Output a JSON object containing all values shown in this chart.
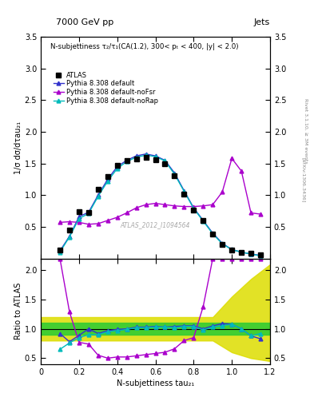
{
  "title_top": "7000 GeV pp",
  "title_right": "Jets",
  "right_label": "Rivet 3.1.10, ≥ 3M events",
  "watermark": "ATLAS_2012_I1094564",
  "arxiv": "[arXiv:1306.3436]",
  "inner_title": "N-subjettiness τ₂/τ₁(CA(1.2), 300< pₜ < 400, |y| < 2.0)",
  "ylabel_main": "1/σ dσ/dτau₂₁",
  "ylabel_ratio": "Ratio to ATLAS",
  "xlabel": "N-subjettiness tau₂₁",
  "ylim_main": [
    0,
    3.5
  ],
  "ylim_ratio": [
    0.4,
    2.2
  ],
  "yticks_main": [
    0.5,
    1.0,
    1.5,
    2.0,
    2.5,
    3.0,
    3.5
  ],
  "yticks_ratio": [
    0.5,
    1.0,
    1.5,
    2.0
  ],
  "xlim": [
    0,
    1.2
  ],
  "xticks": [
    0,
    0.2,
    0.4,
    0.6,
    0.8,
    1.0,
    1.2
  ],
  "atlas_x": [
    0.1,
    0.15,
    0.2,
    0.25,
    0.3,
    0.35,
    0.4,
    0.45,
    0.5,
    0.55,
    0.6,
    0.65,
    0.7,
    0.75,
    0.8,
    0.85,
    0.9,
    0.95,
    1.0,
    1.05,
    1.1,
    1.15
  ],
  "atlas_y": [
    0.13,
    0.45,
    0.74,
    0.73,
    1.09,
    1.29,
    1.47,
    1.55,
    1.57,
    1.6,
    1.56,
    1.5,
    1.3,
    1.02,
    0.76,
    0.6,
    0.38,
    0.22,
    0.13,
    0.1,
    0.08,
    0.06
  ],
  "pythia_default_x": [
    0.1,
    0.15,
    0.2,
    0.25,
    0.3,
    0.35,
    0.4,
    0.45,
    0.5,
    0.55,
    0.6,
    0.65,
    0.7,
    0.75,
    0.8,
    0.85,
    0.9,
    0.95,
    1.0,
    1.05,
    1.1,
    1.15
  ],
  "pythia_default_y": [
    0.12,
    0.35,
    0.66,
    0.73,
    1.0,
    1.25,
    1.45,
    1.55,
    1.62,
    1.65,
    1.62,
    1.55,
    1.35,
    1.07,
    0.8,
    0.6,
    0.4,
    0.24,
    0.14,
    0.1,
    0.07,
    0.05
  ],
  "pythia_noFsr_x": [
    0.1,
    0.15,
    0.2,
    0.25,
    0.3,
    0.35,
    0.4,
    0.45,
    0.5,
    0.55,
    0.6,
    0.65,
    0.7,
    0.75,
    0.8,
    0.85,
    0.9,
    0.95,
    1.0,
    1.05,
    1.1,
    1.15
  ],
  "pythia_noFsr_y": [
    0.57,
    0.58,
    0.57,
    0.54,
    0.55,
    0.6,
    0.65,
    0.72,
    0.8,
    0.85,
    0.87,
    0.85,
    0.83,
    0.82,
    0.82,
    0.83,
    0.85,
    1.05,
    1.58,
    1.38,
    0.72,
    0.7
  ],
  "pythia_noRap_x": [
    0.1,
    0.15,
    0.2,
    0.25,
    0.3,
    0.35,
    0.4,
    0.45,
    0.5,
    0.55,
    0.6,
    0.65,
    0.7,
    0.75,
    0.8,
    0.85,
    0.9,
    0.95,
    1.0,
    1.05,
    1.1,
    1.15
  ],
  "pythia_noRap_y": [
    0.1,
    0.34,
    0.63,
    0.71,
    0.98,
    1.22,
    1.42,
    1.53,
    1.6,
    1.63,
    1.61,
    1.54,
    1.33,
    1.06,
    0.79,
    0.59,
    0.39,
    0.23,
    0.14,
    0.1,
    0.07,
    0.04
  ],
  "ratio_default_x": [
    0.1,
    0.15,
    0.2,
    0.25,
    0.3,
    0.35,
    0.4,
    0.45,
    0.5,
    0.55,
    0.6,
    0.65,
    0.7,
    0.75,
    0.8,
    0.85,
    0.9,
    0.95,
    1.0,
    1.05,
    1.1,
    1.15
  ],
  "ratio_default_y": [
    0.92,
    0.78,
    0.89,
    1.0,
    0.92,
    0.97,
    0.99,
    1.0,
    1.03,
    1.03,
    1.04,
    1.03,
    1.04,
    1.05,
    1.05,
    1.0,
    1.05,
    1.09,
    1.08,
    1.0,
    0.88,
    0.83
  ],
  "ratio_noFsr_x": [
    0.1,
    0.15,
    0.2,
    0.25,
    0.3,
    0.35,
    0.4,
    0.45,
    0.5,
    0.55,
    0.6,
    0.65,
    0.7,
    0.75,
    0.8,
    0.85,
    0.9,
    0.95,
    1.0,
    1.05,
    1.1,
    1.15
  ],
  "ratio_noFsr_y": [
    2.2,
    1.29,
    0.77,
    0.74,
    0.55,
    0.5,
    0.52,
    0.52,
    0.54,
    0.56,
    0.58,
    0.6,
    0.66,
    0.8,
    0.85,
    1.38,
    2.2,
    2.2,
    2.2,
    2.2,
    2.2,
    2.2
  ],
  "ratio_noRap_x": [
    0.1,
    0.15,
    0.2,
    0.25,
    0.3,
    0.35,
    0.4,
    0.45,
    0.5,
    0.55,
    0.6,
    0.65,
    0.7,
    0.75,
    0.8,
    0.85,
    0.9,
    0.95,
    1.0,
    1.05,
    1.1,
    1.15
  ],
  "ratio_noRap_y": [
    0.65,
    0.76,
    0.85,
    0.9,
    0.9,
    0.95,
    0.97,
    0.99,
    1.02,
    1.02,
    1.03,
    1.03,
    1.02,
    1.04,
    1.04,
    0.98,
    1.03,
    1.05,
    1.08,
    1.0,
    0.88,
    0.92
  ],
  "band_x": [
    0.0,
    0.1,
    0.2,
    0.3,
    0.4,
    0.5,
    0.6,
    0.7,
    0.8,
    0.9,
    1.0,
    1.1,
    1.2
  ],
  "band_inner_lo": [
    0.9,
    0.9,
    0.9,
    0.9,
    0.9,
    0.9,
    0.9,
    0.9,
    0.9,
    0.9,
    0.9,
    0.9,
    0.9
  ],
  "band_inner_hi": [
    1.1,
    1.1,
    1.1,
    1.1,
    1.1,
    1.1,
    1.1,
    1.1,
    1.1,
    1.1,
    1.1,
    1.1,
    1.1
  ],
  "band_outer_lo": [
    0.8,
    0.8,
    0.8,
    0.8,
    0.8,
    0.8,
    0.8,
    0.8,
    0.8,
    0.8,
    0.6,
    0.5,
    0.45
  ],
  "band_outer_hi": [
    1.2,
    1.2,
    1.2,
    1.2,
    1.2,
    1.2,
    1.2,
    1.2,
    1.2,
    1.2,
    1.55,
    1.85,
    2.1
  ],
  "color_atlas": "#000000",
  "color_default": "#3333cc",
  "color_noFsr": "#aa00cc",
  "color_noRap": "#00bbbb",
  "color_band_inner": "#33cc33",
  "color_band_outer": "#dddd00",
  "legend_atlas": "ATLAS",
  "legend_default": "Pythia 8.308 default",
  "legend_noFsr": "Pythia 8.308 default-noFsr",
  "legend_noRap": "Pythia 8.308 default-noRap"
}
